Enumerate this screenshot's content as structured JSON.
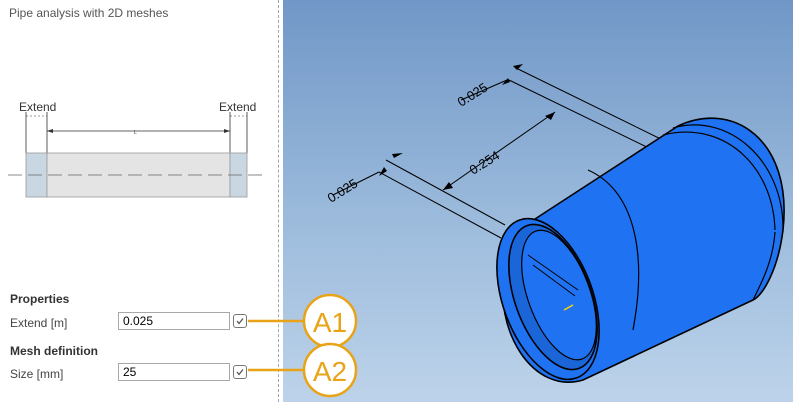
{
  "panel": {
    "title": "Pipe analysis with 2D meshes",
    "schematic": {
      "extend_left": "Extend",
      "extend_right": "Extend",
      "length_label": "L"
    }
  },
  "properties": {
    "heading": "Properties",
    "extend_label": "Extend [m]",
    "extend_value": "0.025"
  },
  "mesh": {
    "heading": "Mesh definition",
    "size_label": "Size [mm]",
    "size_value": "25"
  },
  "callouts": {
    "a1": "A1",
    "a2": "A2",
    "color": "#e8a317"
  },
  "viewport": {
    "dim_top": "0.025",
    "dim_middle": "0.254",
    "dim_left": "0.025",
    "pipe_color": "#1f73f2"
  }
}
